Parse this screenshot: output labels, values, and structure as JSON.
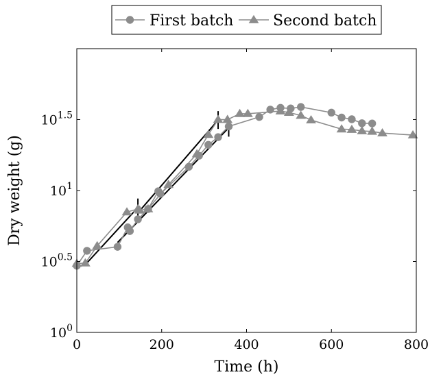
{
  "chart_data": {
    "type": "line",
    "title": "",
    "xlabel": "Time (h)",
    "ylabel": "Dry weight (g)",
    "xlim": [
      0,
      800
    ],
    "ylim_log10": [
      0,
      2
    ],
    "yscale": "log",
    "grid": false,
    "legend_position": "top-center",
    "x_ticks": [
      {
        "value": 0,
        "label": "0"
      },
      {
        "value": 200,
        "label": "200"
      },
      {
        "value": 400,
        "label": "400"
      },
      {
        "value": 600,
        "label": "600"
      },
      {
        "value": 800,
        "label": "800"
      }
    ],
    "y_ticks": [
      {
        "log": 0,
        "base": "10",
        "exp": "0"
      },
      {
        "log": 0.5,
        "base": "10",
        "exp": "0.5"
      },
      {
        "log": 1,
        "base": "10",
        "exp": "1"
      },
      {
        "log": 1.5,
        "base": "10",
        "exp": "1.5"
      }
    ],
    "series": [
      {
        "name": "First batch",
        "marker": "circle",
        "color": "#8c8c8c",
        "points": [
          [
            0,
            2.95
          ],
          [
            24,
            3.76
          ],
          [
            96,
            4.01
          ],
          [
            120,
            5.5
          ],
          [
            125,
            5.18
          ],
          [
            144,
            6.27
          ],
          [
            168,
            7.41
          ],
          [
            192,
            9.88
          ],
          [
            197,
            9.47
          ],
          [
            264,
            14.7
          ],
          [
            288,
            17.6
          ],
          [
            310,
            21.0
          ],
          [
            333,
            23.8
          ],
          [
            358,
            28.3
          ],
          [
            430,
            33.0
          ],
          [
            456,
            37.2
          ],
          [
            480,
            38.3
          ],
          [
            504,
            37.9
          ],
          [
            528,
            38.8
          ],
          [
            600,
            35.4
          ],
          [
            624,
            32.7
          ],
          [
            648,
            31.8
          ],
          [
            672,
            29.8
          ],
          [
            696,
            29.7
          ]
        ]
      },
      {
        "name": "Second batch",
        "marker": "triangle",
        "color": "#8c8c8c",
        "points": [
          [
            0,
            3.06
          ],
          [
            20,
            3.08
          ],
          [
            48,
            4.07
          ],
          [
            118,
            7.05
          ],
          [
            144,
            7.41
          ],
          [
            148,
            7.26
          ],
          [
            168,
            7.41
          ],
          [
            216,
            11.0
          ],
          [
            283,
            18.1
          ],
          [
            310,
            24.8
          ],
          [
            333,
            31.6
          ],
          [
            355,
            31.6
          ],
          [
            384,
            34.8
          ],
          [
            403,
            34.8
          ],
          [
            480,
            36.3
          ],
          [
            500,
            35.5
          ],
          [
            528,
            33.8
          ],
          [
            552,
            31.4
          ],
          [
            624,
            27.1
          ],
          [
            648,
            26.9
          ],
          [
            672,
            26.3
          ],
          [
            696,
            26.1
          ],
          [
            720,
            25.4
          ],
          [
            792,
            24.6
          ]
        ]
      }
    ],
    "fit_lines": [
      {
        "from": [
          20,
          3.0
        ],
        "to": [
          144,
          7.6
        ],
        "end_bar_x": 144
      },
      {
        "from": [
          96,
          4.3
        ],
        "to": [
          358,
          27.7
        ],
        "end_bar_x": 358
      },
      {
        "from": [
          150,
          7.3
        ],
        "to": [
          333,
          31.4
        ],
        "end_bar_x": 333
      }
    ]
  }
}
